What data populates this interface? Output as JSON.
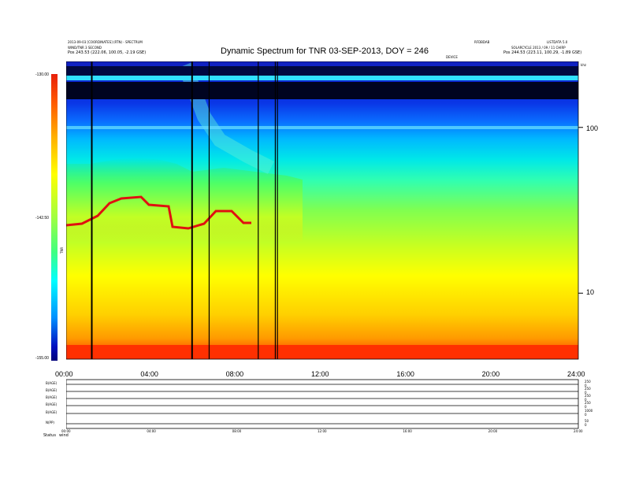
{
  "header": {
    "title": "Dynamic Spectrum for TNR 03-SEP-2013, DOY = 246",
    "top_left_line1": "2013-09-03 [COORDINATES] (RTN) - SPECTRUM",
    "top_left_line2": "WIND/TNR 3 SECOND",
    "top_left_pos": "Pos   243.53 (222.06, 100.05, -2.19 GSE)",
    "top_right_code": "RFDBDAB",
    "top_right_version": "LISTDATA 5.0",
    "top_right_file": "SOLARCYCLE 2013 / 09 / 11 CHIRP",
    "top_right_pos": "Pos   244.53 (223.11, 100.29, -1.89 GSE)",
    "top_mid_marker": "DEVICE",
    "corner_mark": "khz"
  },
  "chart_data": {
    "type": "heatmap",
    "title": "Dynamic Spectrum for TNR 03-SEP-2013, DOY = 246",
    "x_tick_labels": [
      "00:00",
      "04:00",
      "08:00",
      "12:00",
      "16:00",
      "20:00",
      "24:00"
    ],
    "x_range_hours": [
      0,
      24
    ],
    "y_scale": "log",
    "y_tick_labels": [
      "100",
      "10"
    ],
    "y_range_khz": [
      4,
      250
    ],
    "colorbar": {
      "labels": [
        "-130.00",
        "-142.50",
        "-155.00"
      ],
      "range": [
        -155,
        -130
      ],
      "side_label": "TNR"
    },
    "vertical_gap_lines_hours": [
      1.2,
      5.9,
      6.7,
      9.0,
      9.8,
      9.9
    ],
    "horizontal_bands": [
      {
        "name": "bright line",
        "freq_khz": 180
      },
      {
        "name": "dark band",
        "freq_range_khz": [
          140,
          165
        ]
      },
      {
        "name": "bright line",
        "freq_khz": 110
      }
    ],
    "lower_panels": [
      {
        "label": "B(AGE)",
        "right_top": "250",
        "right_bottom": "0"
      },
      {
        "label": "B(AGE)",
        "right_top": "250",
        "right_bottom": "0"
      },
      {
        "label": "B(AGE)",
        "right_top": "250",
        "right_bottom": "0"
      },
      {
        "label": "B(AGE)",
        "right_top": "250",
        "right_bottom": "0"
      },
      {
        "label": "B(AGE)",
        "right_top": "1000",
        "right_bottom": "0"
      },
      {
        "label": "N(PP)",
        "right_top": "50",
        "right_bottom": "0"
      }
    ],
    "lower_x_tick_labels": [
      "00:00",
      "04:00",
      "08:00",
      "12:00",
      "16:00",
      "20:00",
      "24:00"
    ],
    "status_label": "Status",
    "status_value": "wind"
  }
}
